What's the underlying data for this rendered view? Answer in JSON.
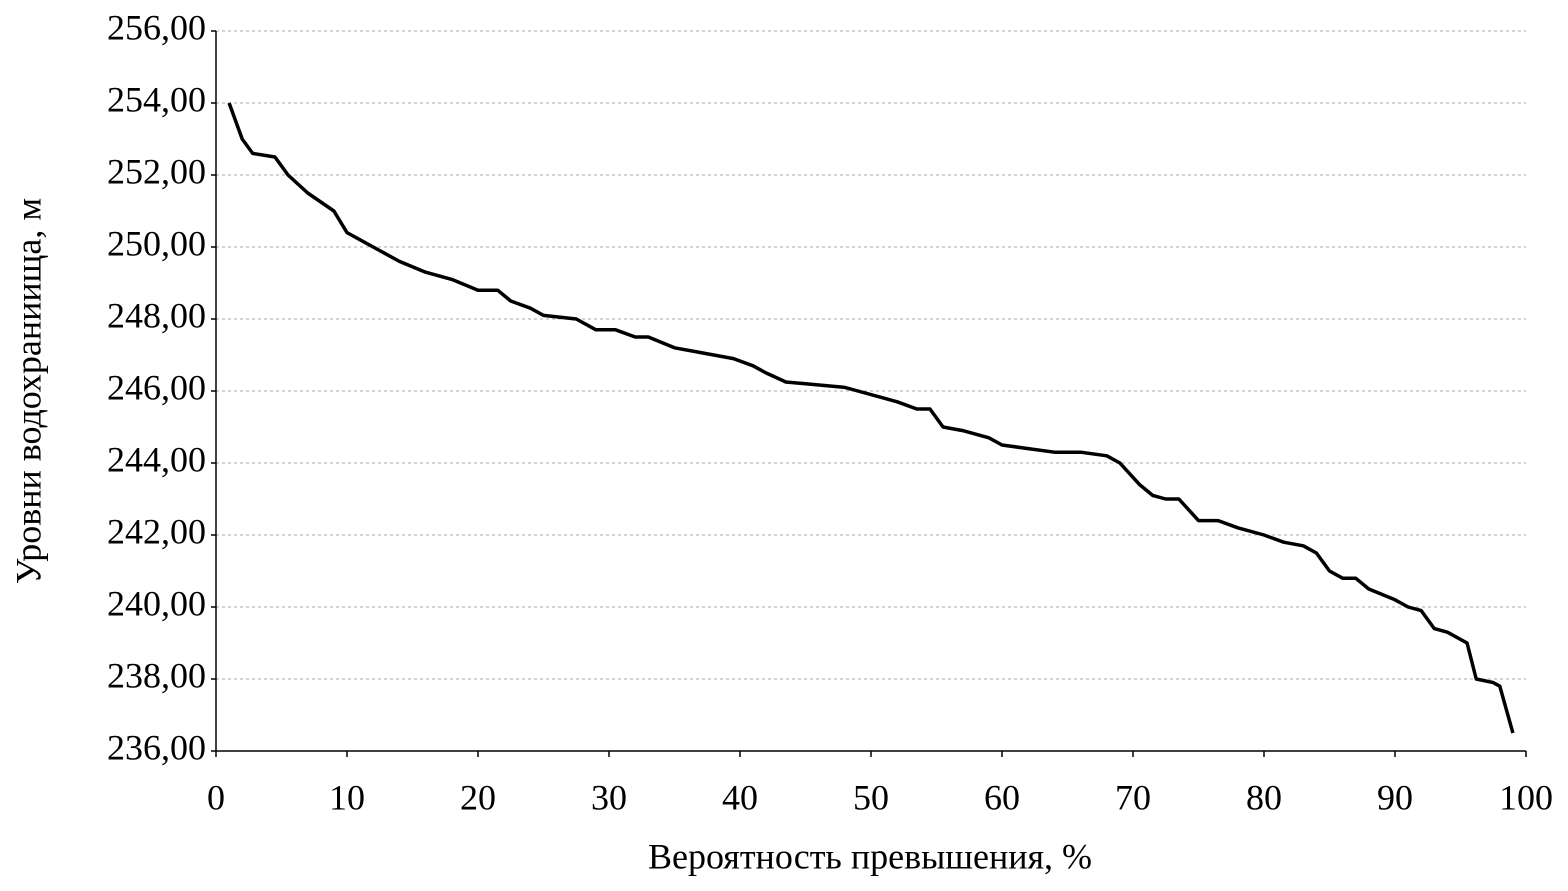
{
  "chart_data": {
    "type": "line",
    "x_label": "Вероятность превышения,  %",
    "y_label": "Уровни водохраниища, м",
    "xlim": [
      0,
      100
    ],
    "xticks": [
      0,
      10,
      20,
      30,
      40,
      50,
      60,
      70,
      80,
      90,
      100
    ],
    "ylim": [
      236,
      256
    ],
    "yticks": [
      {
        "value": 236,
        "label": "236,00"
      },
      {
        "value": 238,
        "label": "238,00"
      },
      {
        "value": 240,
        "label": "240,00"
      },
      {
        "value": 242,
        "label": "242,00"
      },
      {
        "value": 244,
        "label": "244,00"
      },
      {
        "value": 246,
        "label": "246,00"
      },
      {
        "value": 248,
        "label": "248,00"
      },
      {
        "value": 250,
        "label": "250,00"
      },
      {
        "value": 252,
        "label": "252,00"
      },
      {
        "value": 254,
        "label": "254,00"
      },
      {
        "value": 256,
        "label": "256,00"
      }
    ],
    "grid": true,
    "color": "#000000",
    "x": [
      1,
      2,
      2.8,
      4.5,
      5.5,
      7,
      9,
      10,
      11,
      12,
      12.5,
      14,
      16,
      18,
      20,
      21.5,
      22.5,
      24,
      25,
      27.5,
      29,
      30.5,
      32,
      33,
      35,
      36.5,
      38,
      39.5,
      41,
      42,
      43.5,
      45,
      48,
      49,
      51,
      52,
      53.5,
      54.5,
      55.5,
      57,
      59,
      60,
      62,
      64,
      66,
      68,
      69,
      69.5,
      70.5,
      71.5,
      72.5,
      73.5,
      75,
      76.5,
      78,
      80,
      81.5,
      83,
      84,
      85,
      86,
      87,
      88,
      90,
      91,
      92,
      93,
      94,
      95.5,
      96.2,
      97.5,
      98,
      99
    ],
    "values": [
      254.0,
      253.0,
      252.6,
      252.5,
      252.0,
      251.5,
      251.0,
      250.4,
      250.2,
      250.0,
      249.9,
      249.6,
      249.3,
      249.1,
      248.8,
      248.8,
      248.5,
      248.3,
      248.1,
      248.0,
      247.7,
      247.7,
      247.5,
      247.5,
      247.2,
      247.1,
      247.0,
      246.9,
      246.7,
      246.5,
      246.25,
      246.2,
      246.1,
      246.0,
      245.8,
      245.7,
      245.5,
      245.5,
      245.0,
      244.9,
      244.7,
      244.5,
      244.4,
      244.3,
      244.3,
      244.2,
      244.0,
      243.8,
      243.4,
      243.1,
      243.0,
      243.0,
      242.4,
      242.4,
      242.2,
      242.0,
      241.8,
      241.7,
      241.5,
      241.0,
      240.8,
      240.8,
      240.5,
      240.2,
      240.0,
      239.9,
      239.4,
      239.3,
      239.0,
      238.0,
      237.9,
      237.8,
      236.5
    ]
  }
}
